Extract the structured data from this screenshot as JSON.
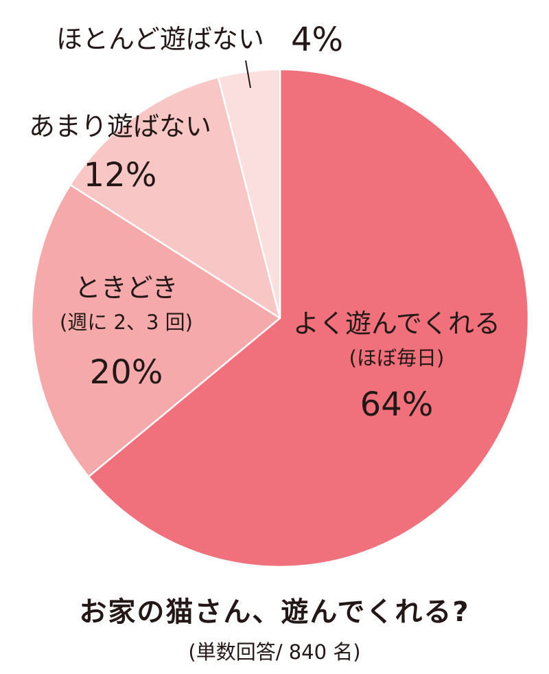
{
  "chart_data": {
    "type": "pie",
    "title": "お家の猫さん、遊んでくれる?",
    "subtitle": "(単数回答/ 840 名)",
    "slices": [
      {
        "label": "よく遊んでくれる",
        "sublabel": "(ほぼ毎日)",
        "value": 64,
        "value_label": "64%",
        "color": "#f0707c"
      },
      {
        "label": "ときどき",
        "sublabel": "(週に 2、3 回)",
        "value": 20,
        "value_label": "20%",
        "color": "#f5a9ab"
      },
      {
        "label": "あまり遊ばない",
        "sublabel": "",
        "value": 12,
        "value_label": "12%",
        "color": "#f9c6c6"
      },
      {
        "label": "ほとんど遊ばない",
        "sublabel": "",
        "value": 4,
        "value_label": "4%",
        "color": "#fbdfde"
      }
    ]
  }
}
